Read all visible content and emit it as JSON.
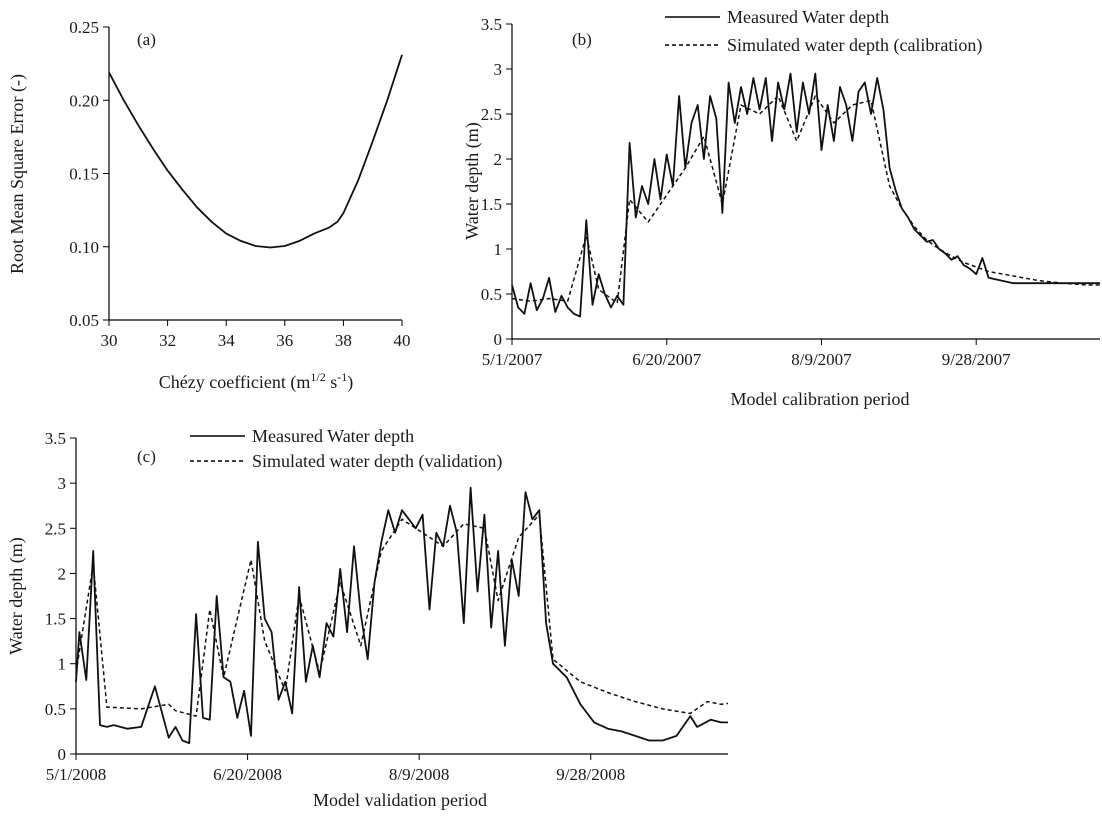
{
  "chart_data": [
    {
      "type": "line",
      "panel_label": "(a)",
      "xlabel": "Chézy coefficient  (m",
      "xlabel_sup1": "1/2",
      "xlabel_mid": " s",
      "xlabel_sup2": "-1",
      "xlabel_end": ")",
      "ylabel": "Root Mean Square Error  (-)",
      "xlim": [
        30,
        40
      ],
      "ylim": [
        0.05,
        0.25
      ],
      "xticks": [
        "30",
        "32",
        "34",
        "36",
        "38",
        "40"
      ],
      "yticks": [
        "0.05",
        "0.10",
        "0.15",
        "0.20",
        "0.25"
      ],
      "grid": false,
      "series": [
        {
          "x": [
            30,
            30.5,
            31,
            31.5,
            32,
            32.5,
            33,
            33.5,
            34,
            34.5,
            35,
            35.5,
            36,
            36.5,
            37,
            37.5,
            37.8,
            38,
            38.5,
            39,
            39.5,
            40
          ],
          "y": [
            0.219,
            0.2,
            0.183,
            0.167,
            0.152,
            0.139,
            0.127,
            0.117,
            0.109,
            0.104,
            0.1005,
            0.0995,
            0.1005,
            0.104,
            0.109,
            0.113,
            0.117,
            0.123,
            0.145,
            0.172,
            0.2,
            0.231
          ]
        }
      ]
    },
    {
      "type": "line",
      "panel_label": "(b)",
      "xlabel": "Model calibration period",
      "ylabel": "Water depth (m)",
      "xlim": [
        "2007-05-01",
        "2007-11-07"
      ],
      "ylim": [
        0,
        3.5
      ],
      "xticks": [
        "5/1/2007",
        "6/20/2007",
        "8/9/2007",
        "9/28/2007"
      ],
      "yticks": [
        "0",
        "0.5",
        "1",
        "1.5",
        "2",
        "2.5",
        "3",
        "3.5"
      ],
      "legend": "top-center",
      "grid": false,
      "series": [
        {
          "name": "Measured Water depth",
          "style": "solid",
          "x": [
            "2007-05-01",
            "2007-05-03",
            "2007-05-05",
            "2007-05-07",
            "2007-05-09",
            "2007-05-11",
            "2007-05-13",
            "2007-05-15",
            "2007-05-17",
            "2007-05-19",
            "2007-05-21",
            "2007-05-23",
            "2007-05-25",
            "2007-05-27",
            "2007-05-29",
            "2007-05-31",
            "2007-06-02",
            "2007-06-04",
            "2007-06-06",
            "2007-06-08",
            "2007-06-10",
            "2007-06-12",
            "2007-06-14",
            "2007-06-16",
            "2007-06-18",
            "2007-06-20",
            "2007-06-22",
            "2007-06-24",
            "2007-06-26",
            "2007-06-28",
            "2007-06-30",
            "2007-07-02",
            "2007-07-04",
            "2007-07-06",
            "2007-07-08",
            "2007-07-10",
            "2007-07-12",
            "2007-07-14",
            "2007-07-16",
            "2007-07-18",
            "2007-07-20",
            "2007-07-22",
            "2007-07-24",
            "2007-07-26",
            "2007-07-28",
            "2007-07-30",
            "2007-08-01",
            "2007-08-03",
            "2007-08-05",
            "2007-08-07",
            "2007-08-09",
            "2007-08-11",
            "2007-08-13",
            "2007-08-15",
            "2007-08-17",
            "2007-08-19",
            "2007-08-21",
            "2007-08-23",
            "2007-08-25",
            "2007-08-27",
            "2007-08-29",
            "2007-08-31",
            "2007-09-02",
            "2007-09-04",
            "2007-09-06",
            "2007-09-08",
            "2007-09-10",
            "2007-09-12",
            "2007-09-14",
            "2007-09-16",
            "2007-09-18",
            "2007-09-20",
            "2007-09-22",
            "2007-09-24",
            "2007-09-26",
            "2007-09-28",
            "2007-09-30",
            "2007-10-02",
            "2007-10-06",
            "2007-10-10",
            "2007-10-14",
            "2007-10-18",
            "2007-10-22",
            "2007-10-26",
            "2007-10-30",
            "2007-11-03",
            "2007-11-07"
          ],
          "y": [
            0.6,
            0.35,
            0.28,
            0.62,
            0.32,
            0.45,
            0.68,
            0.3,
            0.48,
            0.35,
            0.28,
            0.25,
            1.32,
            0.38,
            0.72,
            0.5,
            0.35,
            0.48,
            0.38,
            2.18,
            1.35,
            1.7,
            1.5,
            2.0,
            1.55,
            2.05,
            1.7,
            2.7,
            1.9,
            2.4,
            2.6,
            2.0,
            2.7,
            2.45,
            1.4,
            2.85,
            2.4,
            2.8,
            2.5,
            2.9,
            2.55,
            2.9,
            2.2,
            2.85,
            2.55,
            2.95,
            2.3,
            2.85,
            2.5,
            2.95,
            2.1,
            2.6,
            2.2,
            2.8,
            2.6,
            2.2,
            2.75,
            2.85,
            2.5,
            2.9,
            2.55,
            1.9,
            1.65,
            1.45,
            1.35,
            1.22,
            1.15,
            1.08,
            1.1,
            1.0,
            0.95,
            0.88,
            0.92,
            0.82,
            0.78,
            0.72,
            0.9,
            0.68,
            0.65,
            0.62,
            0.62,
            0.62,
            0.62,
            0.62,
            0.62,
            0.62,
            0.62
          ]
        },
        {
          "name": "Simulated water depth (calibration)",
          "style": "dashed",
          "x": [
            "2007-05-01",
            "2007-05-07",
            "2007-05-13",
            "2007-05-19",
            "2007-05-25",
            "2007-05-29",
            "2007-06-04",
            "2007-06-08",
            "2007-06-14",
            "2007-06-20",
            "2007-06-26",
            "2007-07-02",
            "2007-07-08",
            "2007-07-14",
            "2007-07-20",
            "2007-07-26",
            "2007-08-01",
            "2007-08-07",
            "2007-08-13",
            "2007-08-19",
            "2007-08-25",
            "2007-08-31",
            "2007-09-04",
            "2007-09-08",
            "2007-09-12",
            "2007-09-16",
            "2007-09-20",
            "2007-09-24",
            "2007-09-28",
            "2007-10-02",
            "2007-10-10",
            "2007-10-18",
            "2007-10-26",
            "2007-11-03",
            "2007-11-07"
          ],
          "y": [
            0.45,
            0.42,
            0.45,
            0.42,
            1.15,
            0.55,
            0.4,
            1.55,
            1.3,
            1.6,
            1.9,
            2.25,
            1.5,
            2.6,
            2.5,
            2.7,
            2.2,
            2.7,
            2.4,
            2.6,
            2.65,
            1.7,
            1.45,
            1.25,
            1.1,
            1.0,
            0.92,
            0.85,
            0.8,
            0.75,
            0.7,
            0.65,
            0.62,
            0.6,
            0.6
          ]
        }
      ]
    },
    {
      "type": "line",
      "panel_label": "(c)",
      "xlabel": "Model validation period",
      "ylabel": "Water depth (m)",
      "xlim": [
        "2008-05-01",
        "2008-11-07"
      ],
      "ylim": [
        0,
        3.5
      ],
      "xticks": [
        "5/1/2008",
        "6/20/2008",
        "8/9/2008",
        "9/28/2008"
      ],
      "yticks": [
        "0",
        "0.5",
        "1",
        "1.5",
        "2",
        "2.5",
        "3",
        "3.5"
      ],
      "legend": "top-center",
      "grid": false,
      "series": [
        {
          "name": "Measured Water depth",
          "style": "solid",
          "x": [
            "2008-05-01",
            "2008-05-02",
            "2008-05-04",
            "2008-05-06",
            "2008-05-08",
            "2008-05-10",
            "2008-05-12",
            "2008-05-16",
            "2008-05-20",
            "2008-05-24",
            "2008-05-28",
            "2008-05-30",
            "2008-06-01",
            "2008-06-03",
            "2008-06-05",
            "2008-06-07",
            "2008-06-09",
            "2008-06-11",
            "2008-06-13",
            "2008-06-15",
            "2008-06-17",
            "2008-06-19",
            "2008-06-21",
            "2008-06-23",
            "2008-06-25",
            "2008-06-27",
            "2008-06-29",
            "2008-07-01",
            "2008-07-03",
            "2008-07-05",
            "2008-07-07",
            "2008-07-09",
            "2008-07-11",
            "2008-07-13",
            "2008-07-15",
            "2008-07-17",
            "2008-07-19",
            "2008-07-21",
            "2008-07-23",
            "2008-07-25",
            "2008-07-27",
            "2008-07-29",
            "2008-07-31",
            "2008-08-02",
            "2008-08-04",
            "2008-08-06",
            "2008-08-08",
            "2008-08-10",
            "2008-08-12",
            "2008-08-14",
            "2008-08-16",
            "2008-08-18",
            "2008-08-20",
            "2008-08-22",
            "2008-08-24",
            "2008-08-26",
            "2008-08-28",
            "2008-08-30",
            "2008-09-01",
            "2008-09-03",
            "2008-09-05",
            "2008-09-07",
            "2008-09-09",
            "2008-09-11",
            "2008-09-13",
            "2008-09-15",
            "2008-09-17",
            "2008-09-21",
            "2008-09-25",
            "2008-09-29",
            "2008-10-03",
            "2008-10-07",
            "2008-10-11",
            "2008-10-15",
            "2008-10-19",
            "2008-10-23",
            "2008-10-27",
            "2008-10-29",
            "2008-11-02",
            "2008-11-05",
            "2008-11-07"
          ],
          "y": [
            0.8,
            1.35,
            0.82,
            2.25,
            0.32,
            0.3,
            0.32,
            0.28,
            0.3,
            0.75,
            0.18,
            0.3,
            0.15,
            0.12,
            1.55,
            0.4,
            0.38,
            1.75,
            0.85,
            0.8,
            0.4,
            0.7,
            0.2,
            2.35,
            1.5,
            1.35,
            0.6,
            0.8,
            0.45,
            1.85,
            0.8,
            1.2,
            0.85,
            1.45,
            1.3,
            2.05,
            1.35,
            2.3,
            1.55,
            1.05,
            1.9,
            2.35,
            2.7,
            2.45,
            2.7,
            2.6,
            2.5,
            2.65,
            1.6,
            2.45,
            2.3,
            2.75,
            2.45,
            1.45,
            2.95,
            1.8,
            2.65,
            1.4,
            2.25,
            1.2,
            2.15,
            1.75,
            2.9,
            2.6,
            2.7,
            1.45,
            1.0,
            0.85,
            0.55,
            0.35,
            0.28,
            0.25,
            0.2,
            0.15,
            0.15,
            0.2,
            0.42,
            0.3,
            0.38,
            0.35,
            0.35
          ]
        },
        {
          "name": "Simulated water depth (validation)",
          "style": "dashed",
          "x": [
            "2008-05-01",
            "2008-05-06",
            "2008-05-10",
            "2008-05-20",
            "2008-05-28",
            "2008-05-30",
            "2008-06-05",
            "2008-06-09",
            "2008-06-13",
            "2008-06-21",
            "2008-06-25",
            "2008-07-01",
            "2008-07-05",
            "2008-07-11",
            "2008-07-17",
            "2008-07-23",
            "2008-07-29",
            "2008-08-04",
            "2008-08-10",
            "2008-08-16",
            "2008-08-22",
            "2008-08-28",
            "2008-09-01",
            "2008-09-07",
            "2008-09-13",
            "2008-09-17",
            "2008-09-25",
            "2008-10-03",
            "2008-10-11",
            "2008-10-19",
            "2008-10-27",
            "2008-11-01",
            "2008-11-05",
            "2008-11-07"
          ],
          "y": [
            0.9,
            2.1,
            0.52,
            0.5,
            0.55,
            0.48,
            0.42,
            1.6,
            0.85,
            2.15,
            1.25,
            0.7,
            1.75,
            0.9,
            1.9,
            1.2,
            2.25,
            2.6,
            2.45,
            2.3,
            2.55,
            2.5,
            1.7,
            2.4,
            2.65,
            1.05,
            0.8,
            0.68,
            0.58,
            0.5,
            0.45,
            0.58,
            0.55,
            0.56
          ]
        }
      ]
    }
  ]
}
